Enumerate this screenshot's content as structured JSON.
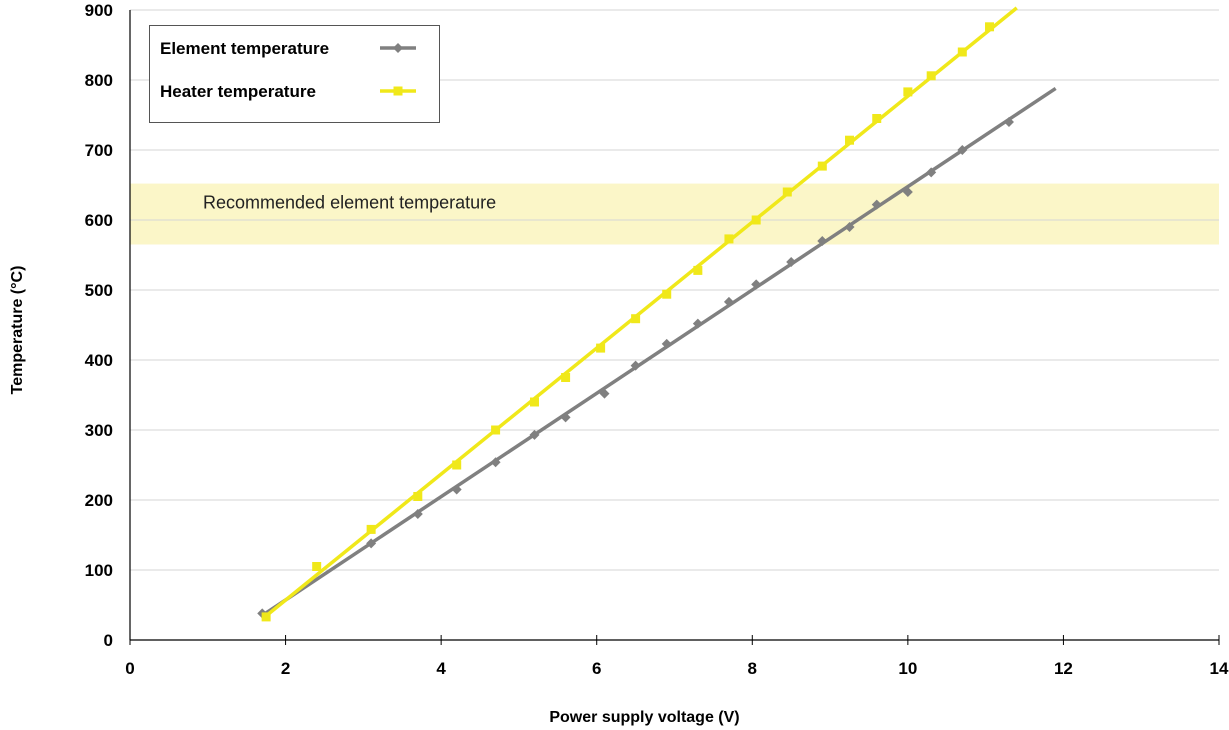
{
  "chart_data": {
    "type": "line",
    "xlabel": "Power supply voltage (V)",
    "ylabel": "Temperature (°C)",
    "xlim": [
      0,
      14
    ],
    "ylim": [
      0,
      900
    ],
    "xticks": [
      0,
      2,
      4,
      6,
      8,
      10,
      12,
      14
    ],
    "yticks": [
      0,
      100,
      200,
      300,
      400,
      500,
      600,
      700,
      800,
      900
    ],
    "grid": "horizontal",
    "legend_position": "top-left",
    "band": {
      "label": "Recommended element temperature",
      "y_range": [
        565,
        652
      ],
      "color": "#fbf6c8"
    },
    "series": [
      {
        "name": "Element temperature",
        "color": "#808080",
        "marker": "diamond",
        "x": [
          1.7,
          3.1,
          3.7,
          4.2,
          4.7,
          5.2,
          5.6,
          6.1,
          6.5,
          6.9,
          7.3,
          7.7,
          8.05,
          8.5,
          8.9,
          9.25,
          9.6,
          10.0,
          10.3,
          10.7,
          11.3
        ],
        "y": [
          38,
          138,
          180,
          215,
          254,
          293,
          318,
          352,
          392,
          423,
          452,
          483,
          508,
          540,
          570,
          590,
          622,
          640,
          668,
          700,
          740
        ],
        "fit": {
          "x": [
            1.7,
            11.9
          ],
          "y": [
            35,
            788
          ]
        }
      },
      {
        "name": "Heater temperature",
        "color": "#f0e81a",
        "marker": "square",
        "x": [
          1.75,
          2.4,
          3.1,
          3.7,
          4.2,
          4.7,
          5.2,
          5.6,
          6.05,
          6.5,
          6.9,
          7.3,
          7.7,
          8.05,
          8.45,
          8.9,
          9.25,
          9.6,
          10.0,
          10.3,
          10.7,
          11.05
        ],
        "y": [
          33,
          105,
          158,
          205,
          250,
          300,
          340,
          375,
          417,
          459,
          494,
          528,
          573,
          600,
          640,
          677,
          714,
          745,
          783,
          806,
          840,
          876
        ],
        "fit": {
          "x": [
            1.7,
            11.4
          ],
          "y": [
            30,
            903
          ]
        }
      }
    ]
  }
}
